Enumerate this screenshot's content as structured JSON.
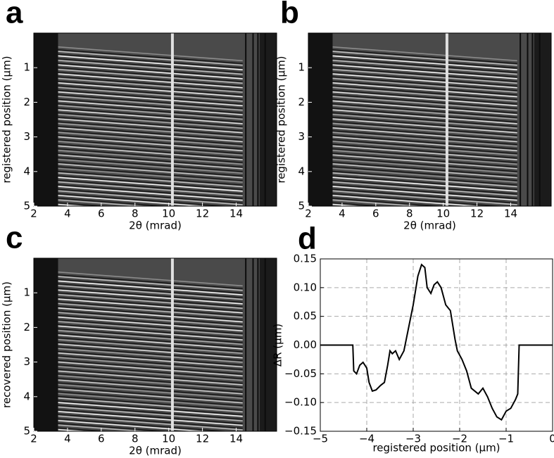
{
  "chart_data": [
    {
      "type": "image",
      "panel_label": "a",
      "xlabel": "2θ (mrad)",
      "ylabel": "registered position (μm)",
      "xlim": [
        2,
        16.4
      ],
      "xticks": [
        2,
        4,
        6,
        8,
        10,
        12,
        14
      ],
      "ylim": [
        0,
        5
      ],
      "yinvert": true,
      "yticks": [
        1,
        2,
        3,
        4,
        5
      ]
    },
    {
      "type": "image",
      "panel_label": "b",
      "xlabel": "2θ (mrad)",
      "ylabel": "registered position (μm)",
      "xlim": [
        2,
        16.4
      ],
      "xticks": [
        2,
        4,
        6,
        8,
        10,
        12,
        14
      ],
      "ylim": [
        0,
        5
      ],
      "yinvert": true,
      "yticks": [
        1,
        2,
        3,
        4,
        5
      ]
    },
    {
      "type": "image",
      "panel_label": "c",
      "xlabel": "2θ (mrad)",
      "ylabel": "recovered position (μm)",
      "xlim": [
        2,
        16.4
      ],
      "xticks": [
        2,
        4,
        6,
        8,
        10,
        12,
        14
      ],
      "ylim": [
        0,
        5
      ],
      "yinvert": true,
      "yticks": [
        1,
        2,
        3,
        4,
        5
      ]
    },
    {
      "type": "line",
      "panel_label": "d",
      "xlabel": "registered position (μm)",
      "ylabel": "ΔR (μm)",
      "xlim": [
        -5,
        0
      ],
      "xticks": [
        {
          "value": -5,
          "label": "−5"
        },
        {
          "value": -4,
          "label": "−4"
        },
        {
          "value": -3,
          "label": "−3"
        },
        {
          "value": -2,
          "label": "−2"
        },
        {
          "value": -1,
          "label": "−1"
        },
        0
      ],
      "ylim": [
        -0.15,
        0.15
      ],
      "yticks": [
        {
          "value": -0.15,
          "label": "−0.15"
        },
        {
          "value": -0.1,
          "label": "−0.10"
        },
        {
          "value": -0.05,
          "label": "−0.05"
        },
        {
          "value": 0,
          "label": "0.00"
        },
        {
          "value": 0.05,
          "label": "0.05"
        },
        {
          "value": 0.1,
          "label": "0.10"
        },
        {
          "value": 0.15,
          "label": "0.15"
        }
      ],
      "grid": true,
      "color": "#000000",
      "x": [
        -5,
        -4.3,
        -4.28,
        -4.22,
        -4.15,
        -4.08,
        -4.0,
        -3.95,
        -3.88,
        -3.8,
        -3.7,
        -3.62,
        -3.55,
        -3.5,
        -3.45,
        -3.38,
        -3.3,
        -3.2,
        -3.1,
        -3.0,
        -2.9,
        -2.82,
        -2.75,
        -2.7,
        -2.62,
        -2.55,
        -2.48,
        -2.4,
        -2.3,
        -2.2,
        -2.1,
        -2.05,
        -1.95,
        -1.85,
        -1.75,
        -1.6,
        -1.5,
        -1.4,
        -1.3,
        -1.2,
        -1.1,
        -1.0,
        -0.9,
        -0.8,
        -0.75,
        -0.72,
        0
      ],
      "values": [
        0,
        0,
        -0.045,
        -0.05,
        -0.035,
        -0.03,
        -0.04,
        -0.065,
        -0.08,
        -0.078,
        -0.07,
        -0.065,
        -0.035,
        -0.01,
        -0.015,
        -0.01,
        -0.025,
        -0.01,
        0.03,
        0.07,
        0.12,
        0.14,
        0.135,
        0.1,
        0.09,
        0.105,
        0.11,
        0.1,
        0.07,
        0.06,
        0.01,
        -0.01,
        -0.025,
        -0.045,
        -0.075,
        -0.085,
        -0.075,
        -0.09,
        -0.11,
        -0.125,
        -0.13,
        -0.115,
        -0.11,
        -0.095,
        -0.085,
        0,
        0
      ]
    }
  ]
}
